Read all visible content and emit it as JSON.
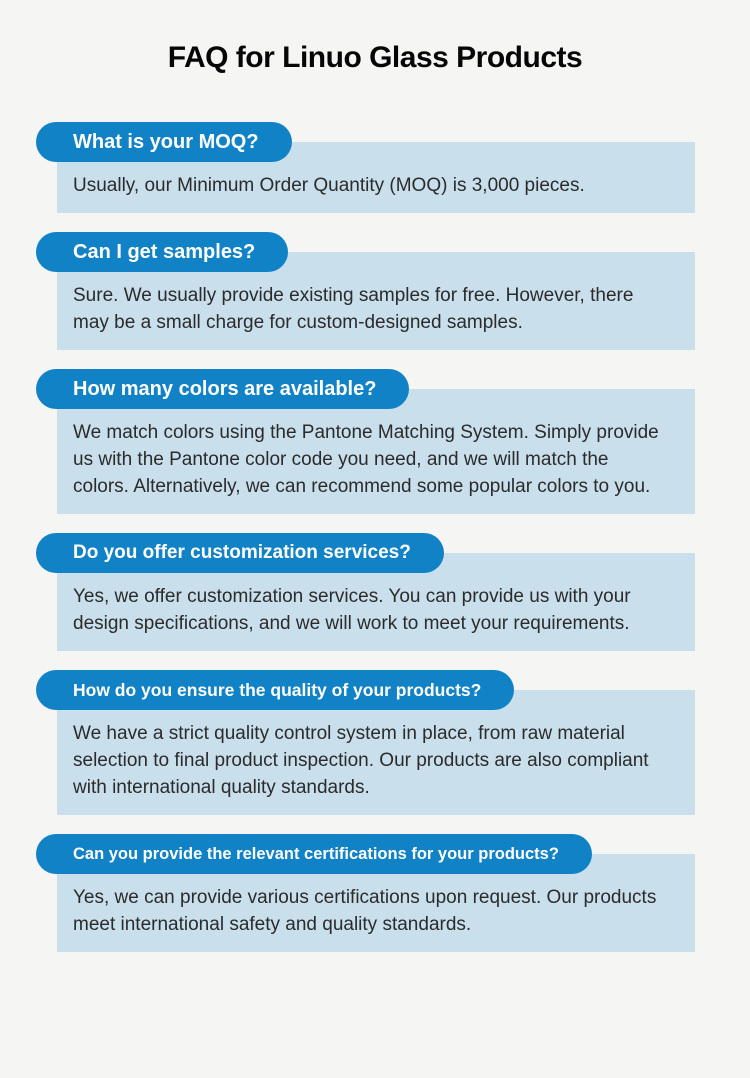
{
  "page": {
    "title": "FAQ for Linuo Glass Products"
  },
  "colors": {
    "pill_blue": "#1182c6",
    "pill_text": "#ffffff",
    "answer_bg": "#c9dfec",
    "answer_text": "#2b2b2b",
    "page_bg": "#f5f5f4"
  },
  "faq": {
    "items": [
      {
        "question": "What is your MOQ?",
        "answer": "Usually, our Minimum Order Quantity (MOQ) is 3,000 pieces."
      },
      {
        "question": "Can I get samples?",
        "answer": "Sure. We usually provide existing samples for free. However, there may be a small charge for custom-designed samples."
      },
      {
        "question": "How many colors are available?",
        "answer": "We match colors using the Pantone Matching System. Simply provide us with the Pantone color code you need, and we will match the colors. Alternatively, we can recommend some popular colors to you."
      },
      {
        "question": "Do you offer customization services?",
        "answer": "Yes, we offer customization services. You can provide us with your design specifications, and we will work to meet your requirements."
      },
      {
        "question": "How do you ensure the quality of your products?",
        "answer": "We have a strict quality control system in place, from raw material selection to final product inspection. Our products are also compliant with international quality standards."
      },
      {
        "question": "Can you provide the relevant certifications for your products?",
        "answer": "Yes, we can provide various certifications upon request. Our products meet international safety and quality standards."
      }
    ]
  }
}
